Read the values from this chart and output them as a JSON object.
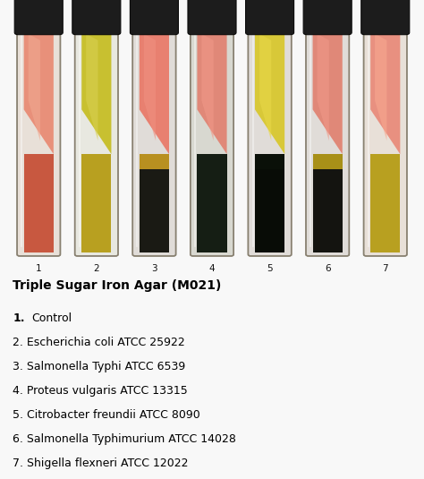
{
  "title": "Triple Sugar Iron Agar (M021)",
  "photo_bg": "#c8cdd8",
  "white_bg": "#f8f8f8",
  "tube_numbers": [
    "1",
    "2",
    "3",
    "4",
    "5",
    "6",
    "7"
  ],
  "legend": [
    {
      "num": "1.",
      "bold": true,
      "text": "Control"
    },
    {
      "num": "2.",
      "bold": false,
      "text": "Escherichia coli ATCC 25922"
    },
    {
      "num": "3.",
      "bold": false,
      "text": "Salmonella Typhi ATCC 6539"
    },
    {
      "num": "4.",
      "bold": false,
      "text": "Proteus vulgaris ATCC 13315"
    },
    {
      "num": "5.",
      "bold": false,
      "text": "Citrobacter freundii ATCC 8090"
    },
    {
      "num": "6.",
      "bold": false,
      "text": "Salmonella Typhimurium ATCC 14028"
    },
    {
      "num": "7.",
      "bold": false,
      "text": "Shigella flexneri ATCC 12022"
    }
  ],
  "tubes": [
    {
      "id": 1,
      "slant_color": "#e8907a",
      "slant_color2": "#f0a890",
      "butt_color": "#c85840",
      "butt_color2": "#d87060",
      "has_black": false,
      "black_color": null,
      "glass_tint": "#e8e0d8"
    },
    {
      "id": 2,
      "slant_color": "#c8c030",
      "slant_color2": "#d8d050",
      "butt_color": "#b8a020",
      "butt_color2": "#c8b030",
      "has_black": false,
      "black_color": null,
      "glass_tint": "#e8e8e0"
    },
    {
      "id": 3,
      "slant_color": "#e88070",
      "slant_color2": "#f09080",
      "butt_color": "#b89020",
      "butt_color2": "#c8a030",
      "has_black": true,
      "black_color": "#1a1a14",
      "glass_tint": "#e0dcd8"
    },
    {
      "id": 4,
      "slant_color": "#e08878",
      "slant_color2": "#f09888",
      "butt_color": "#151e14",
      "butt_color2": "#202818",
      "has_black": false,
      "black_color": null,
      "glass_tint": "#d8d8d0"
    },
    {
      "id": 5,
      "slant_color": "#d8c838",
      "slant_color2": "#e8d848",
      "butt_color": "#0a1008",
      "butt_color2": "#181e10",
      "has_black": true,
      "black_color": "#080c06",
      "glass_tint": "#e0dcd8"
    },
    {
      "id": 6,
      "slant_color": "#e08878",
      "slant_color2": "#f09888",
      "butt_color": "#a89018",
      "butt_color2": "#b8a028",
      "has_black": true,
      "black_color": "#141410",
      "glass_tint": "#e0dcd8"
    },
    {
      "id": 7,
      "slant_color": "#e89080",
      "slant_color2": "#f8a890",
      "butt_color": "#b8a020",
      "butt_color2": "#c8b030",
      "has_black": false,
      "black_color": null,
      "glass_tint": "#e8e0d8"
    }
  ]
}
